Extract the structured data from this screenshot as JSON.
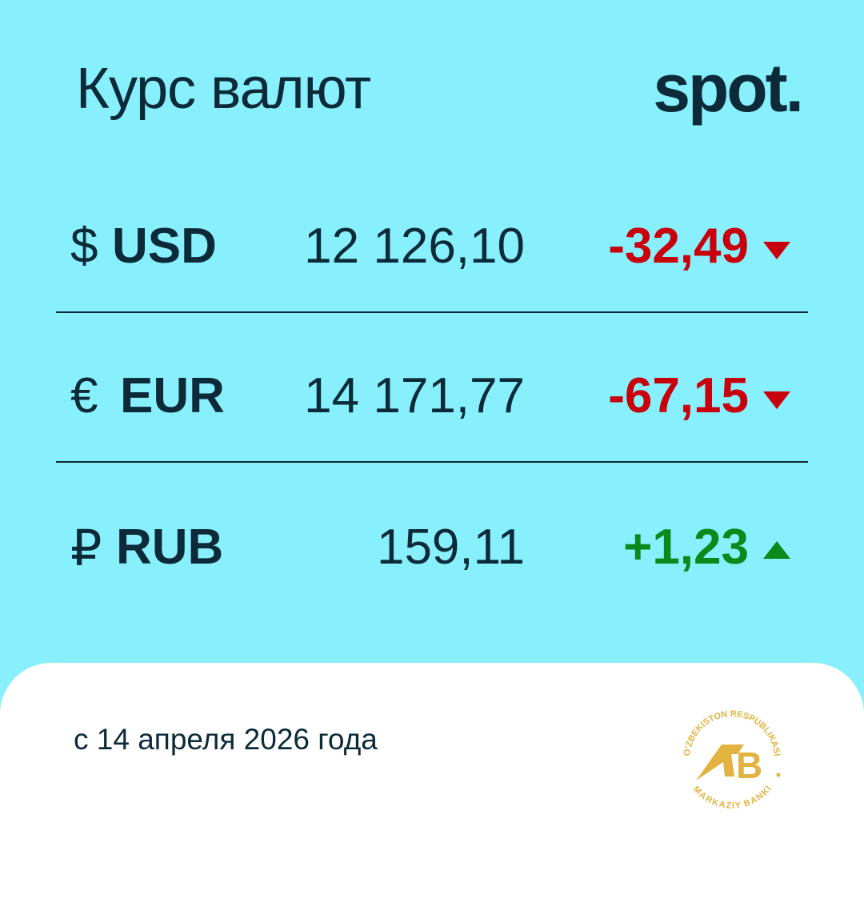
{
  "header": {
    "title": "Курс валют",
    "brand": "spot."
  },
  "rates": [
    {
      "symbol": "$",
      "code": "USD",
      "rate": "12 126,10",
      "change": "-32,49",
      "direction": "down"
    },
    {
      "symbol": "€",
      "code": "EUR",
      "rate": "14 171,77",
      "change": "-67,15",
      "direction": "down"
    },
    {
      "symbol": "₽",
      "code": "RUB",
      "rate": "159,11",
      "change": "+1,23",
      "direction": "up"
    }
  ],
  "footer": {
    "date": "с 14 апреля 2026 года",
    "seal_text_top": "O'ZBEKISTON RESPUBLIKASI",
    "seal_text_bottom": "MARKAZIY BANKI",
    "seal_monogram": "MB"
  },
  "colors": {
    "background": "#88effd",
    "negative": "#c8000b",
    "positive": "#0a8a1b",
    "text": "#0c2a38",
    "seal": "#e2b340"
  }
}
